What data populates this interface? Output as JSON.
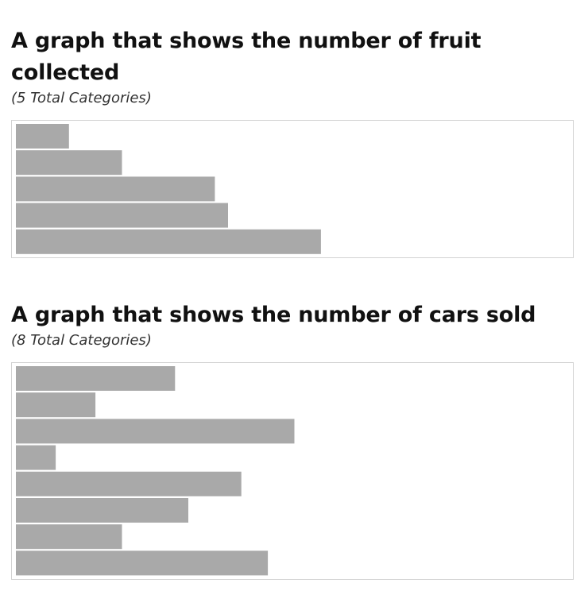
{
  "chart_data": [
    {
      "type": "bar",
      "orientation": "horizontal",
      "title": "A graph that shows the number of fruit collected",
      "subtitle": "(5 Total Categories)",
      "values": [
        4,
        8,
        15,
        16,
        23
      ],
      "xlim": [
        0,
        42
      ],
      "grid": false,
      "bar_color": "#a9a9a9"
    },
    {
      "type": "bar",
      "orientation": "horizontal",
      "title": "A graph that shows the number of cars sold",
      "subtitle": "(8 Total Categories)",
      "values": [
        12,
        6,
        21,
        3,
        17,
        13,
        8,
        19
      ],
      "xlim": [
        0,
        42
      ],
      "grid": false,
      "bar_color": "#a9a9a9"
    }
  ]
}
